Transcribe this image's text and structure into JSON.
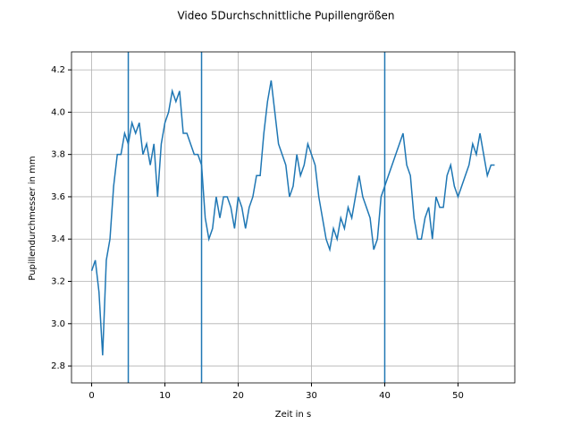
{
  "chart_data": {
    "type": "line",
    "title": "Video 5Durchschnittliche Pupillengrößen",
    "x_label": "Zeit in s",
    "y_label": "Pupillendurchmesser in mm",
    "x": [
      0,
      0.5,
      1,
      1.5,
      2,
      2.5,
      3,
      3.5,
      4,
      4.5,
      5,
      5.5,
      6,
      6.5,
      7,
      7.5,
      8,
      8.5,
      9,
      9.5,
      10,
      10.5,
      11,
      11.5,
      12,
      12.5,
      13,
      13.5,
      14,
      14.5,
      15,
      15.5,
      16,
      16.5,
      17,
      17.5,
      18,
      18.5,
      19,
      19.5,
      20,
      20.5,
      21,
      21.5,
      22,
      22.5,
      23,
      23.5,
      24,
      24.5,
      25,
      25.5,
      26,
      26.5,
      27,
      27.5,
      28,
      28.5,
      29,
      29.5,
      30,
      30.5,
      31,
      31.5,
      32,
      32.5,
      33,
      33.5,
      34,
      34.5,
      35,
      35.5,
      36,
      36.5,
      37,
      37.5,
      38,
      38.5,
      39,
      39.5,
      40,
      40.5,
      41,
      41.5,
      42,
      42.5,
      43,
      43.5,
      44,
      44.5,
      45,
      45.5,
      46,
      46.5,
      47,
      47.5,
      48,
      48.5,
      49,
      49.5,
      50,
      50.5,
      51,
      51.5,
      52,
      52.5,
      53,
      53.5,
      54,
      54.5,
      55
    ],
    "series": [
      {
        "color": "#1f77b4",
        "values": [
          3.25,
          3.3,
          3.15,
          2.85,
          3.3,
          3.4,
          3.65,
          3.8,
          3.8,
          3.9,
          3.85,
          3.95,
          3.9,
          3.95,
          3.8,
          3.85,
          3.75,
          3.85,
          3.6,
          3.85,
          3.95,
          4.0,
          4.1,
          4.05,
          4.1,
          3.9,
          3.9,
          3.85,
          3.8,
          3.8,
          3.75,
          3.5,
          3.4,
          3.45,
          3.6,
          3.5,
          3.6,
          3.6,
          3.55,
          3.45,
          3.6,
          3.55,
          3.45,
          3.55,
          3.6,
          3.7,
          3.7,
          3.9,
          4.05,
          4.15,
          4.0,
          3.85,
          3.8,
          3.75,
          3.6,
          3.65,
          3.8,
          3.7,
          3.75,
          3.85,
          3.8,
          3.75,
          3.6,
          3.5,
          3.4,
          3.35,
          3.45,
          3.4,
          3.5,
          3.45,
          3.55,
          3.5,
          3.6,
          3.7,
          3.6,
          3.55,
          3.5,
          3.35,
          3.4,
          3.6,
          3.65,
          3.7,
          3.75,
          3.8,
          3.85,
          3.9,
          3.75,
          3.7,
          3.5,
          3.4,
          3.4,
          3.5,
          3.55,
          3.4,
          3.6,
          3.55,
          3.55,
          3.7,
          3.75,
          3.65,
          3.6,
          3.65,
          3.7,
          3.75,
          3.85,
          3.8,
          3.9,
          3.8,
          3.7,
          3.75,
          3.75
        ]
      }
    ],
    "vlines": [
      5,
      15,
      40
    ],
    "xlim": [
      -2.75,
      57.75
    ],
    "ylim": [
      2.72,
      4.285
    ],
    "xticks": [
      0,
      10,
      20,
      30,
      40,
      50
    ],
    "yticks": [
      2.8,
      {
        "value": 3,
        "label": "3.0"
      },
      3.2,
      3.4,
      3.6,
      3.8,
      {
        "value": 4,
        "label": "4.0"
      },
      4.2
    ],
    "grid": true
  }
}
